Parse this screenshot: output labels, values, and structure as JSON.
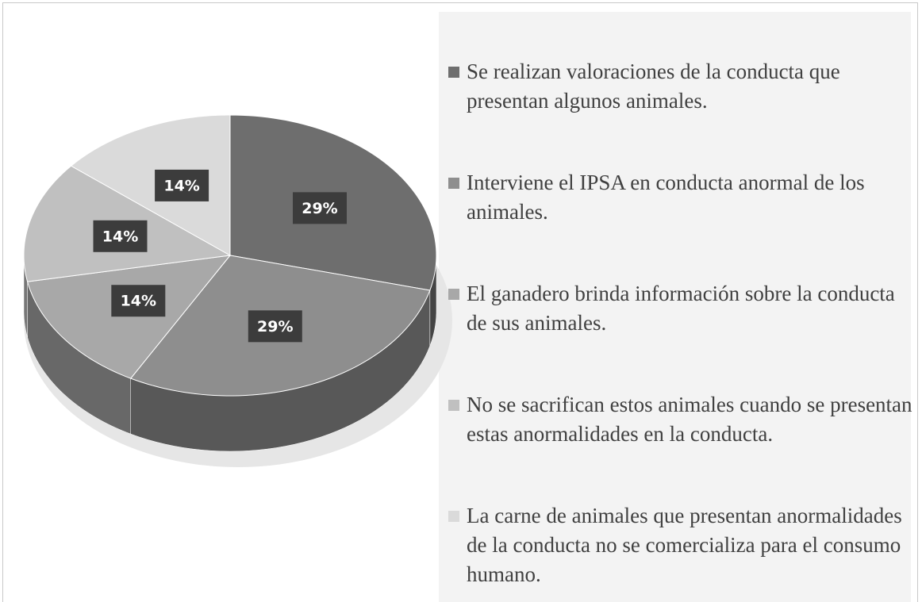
{
  "chart_data": {
    "type": "pie",
    "categories": [
      "Se realizan valoraciones de la conducta que presentan algunos animales.",
      "Interviene el IPSA en conducta anormal de los animales.",
      "El ganadero brinda información sobre la conducta de sus animales.",
      "No se sacrifican estos animales cuando se presentan estas anormalidades en la conducta.",
      "La carne de animales que presentan anormalidades de la conducta no se comercializa para el consumo humano."
    ],
    "values": [
      29,
      29,
      14,
      14,
      14
    ],
    "value_labels": [
      "29%",
      "29%",
      "14%",
      "14%",
      "14%"
    ],
    "colors": [
      "#6e6e6e",
      "#8e8e8e",
      "#a8a8a8",
      "#c0c0c0",
      "#dadada"
    ],
    "legend": "right"
  }
}
